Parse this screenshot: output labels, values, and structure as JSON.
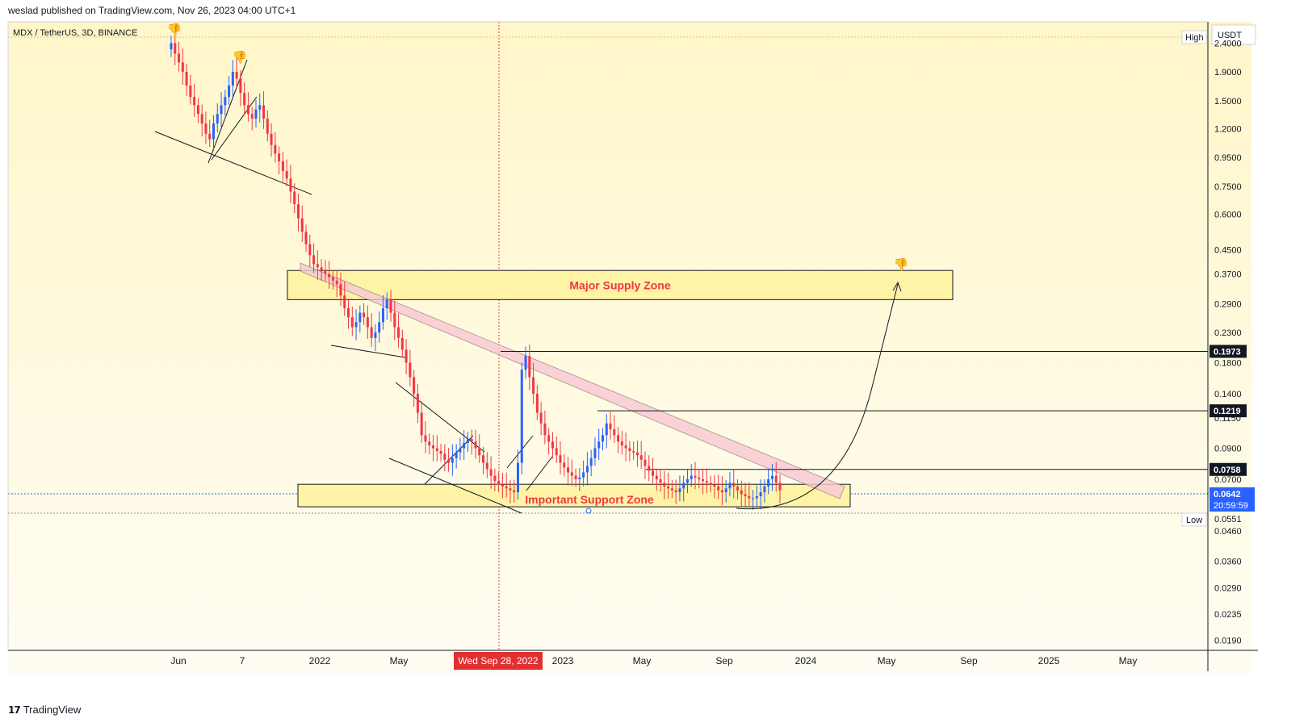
{
  "header": {
    "published": "weslad published on TradingView.com, Nov 26, 2023 04:00 UTC+1"
  },
  "brand": {
    "name": "TradingView"
  },
  "colors": {
    "background_top": "#fff6c9",
    "background_bottom": "#fffdf3",
    "up_candle": "#2962ff",
    "down_candle": "#f23645",
    "zone_fill": "#fff3a6",
    "zone_text": "#f23645",
    "pink_band": "#f8c8d4",
    "current_price_bg": "#2962ff"
  },
  "chart_data": {
    "type": "candlestick",
    "symbol": "MDX / TetherUS, 3D, BINANCE",
    "currency": "USDT",
    "scale": "log",
    "ylim": [
      0.0175,
      2.85
    ],
    "y_ticks": [
      "2.4000",
      "1.9000",
      "1.5000",
      "1.2000",
      "0.9500",
      "0.7500",
      "0.6000",
      "0.4500",
      "0.3700",
      "0.2900",
      "0.2300",
      "0.1800",
      "0.1400",
      "0.1150",
      "0.0900",
      "0.0700",
      "0.0460",
      "0.0360",
      "0.0290",
      "0.0235",
      "0.0190"
    ],
    "x_ticks": [
      "Jun",
      "7",
      "2022",
      "May",
      "2023",
      "May",
      "Sep",
      "2024",
      "May",
      "Sep",
      "2025",
      "May"
    ],
    "crosshair_label": "Wed Sep 28, 2022",
    "price_labels": {
      "high_tag": "High",
      "low_tag": "Low",
      "low_value": "0.0551"
    },
    "level_labels": [
      "0.1973",
      "0.1219",
      "0.0758"
    ],
    "current_price": {
      "value": "0.0642",
      "countdown": "20:59:59"
    },
    "zones": [
      {
        "name": "Major Supply Zone",
        "low": 0.3,
        "high": 0.38
      },
      {
        "name": "Important Support Zone",
        "low": 0.056,
        "high": 0.0672
      }
    ],
    "series_close": [
      2.4,
      2.2,
      2.05,
      1.9,
      1.7,
      1.55,
      1.45,
      1.35,
      1.25,
      1.15,
      1.1,
      1.25,
      1.35,
      1.45,
      1.55,
      1.7,
      1.9,
      1.8,
      1.6,
      1.45,
      1.35,
      1.3,
      1.4,
      1.45,
      1.3,
      1.15,
      1.05,
      0.98,
      0.92,
      0.85,
      0.8,
      0.72,
      0.65,
      0.58,
      0.52,
      0.47,
      0.43,
      0.4,
      0.39,
      0.38,
      0.37,
      0.36,
      0.35,
      0.34,
      0.31,
      0.28,
      0.26,
      0.24,
      0.25,
      0.27,
      0.26,
      0.24,
      0.22,
      0.23,
      0.25,
      0.28,
      0.3,
      0.27,
      0.24,
      0.22,
      0.2,
      0.18,
      0.16,
      0.14,
      0.12,
      0.1,
      0.095,
      0.092,
      0.09,
      0.088,
      0.086,
      0.082,
      0.08,
      0.083,
      0.087,
      0.09,
      0.094,
      0.097,
      0.095,
      0.09,
      0.085,
      0.08,
      0.076,
      0.072,
      0.069,
      0.067,
      0.066,
      0.065,
      0.064,
      0.063,
      0.08,
      0.17,
      0.19,
      0.16,
      0.14,
      0.12,
      0.11,
      0.1,
      0.095,
      0.09,
      0.085,
      0.08,
      0.077,
      0.074,
      0.072,
      0.07,
      0.071,
      0.074,
      0.078,
      0.083,
      0.09,
      0.095,
      0.1,
      0.11,
      0.105,
      0.1,
      0.095,
      0.092,
      0.09,
      0.088,
      0.087,
      0.085,
      0.082,
      0.078,
      0.075,
      0.072,
      0.07,
      0.068,
      0.066,
      0.065,
      0.064,
      0.063,
      0.065,
      0.068,
      0.07,
      0.072,
      0.071,
      0.07,
      0.069,
      0.068,
      0.067,
      0.066,
      0.064,
      0.063,
      0.065,
      0.068,
      0.066,
      0.064,
      0.062,
      0.061,
      0.06,
      0.06,
      0.061,
      0.063,
      0.066,
      0.07,
      0.072,
      0.068,
      0.064
    ]
  }
}
